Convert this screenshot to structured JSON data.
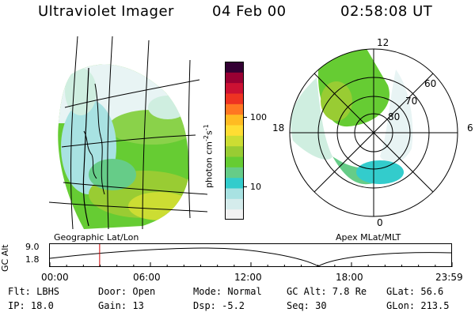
{
  "header": {
    "title": "Ultraviolet Imager",
    "date": "04 Feb 00",
    "time": "02:58:08 UT"
  },
  "left_panel": {
    "caption": "Geographic Lat/Lon"
  },
  "right_panel": {
    "caption": "Apex  MLat/MLT",
    "mlt_labels": {
      "top": "12",
      "bottom": "0",
      "left": "18",
      "right": "6"
    },
    "lat_labels": [
      "60",
      "70",
      "80"
    ]
  },
  "colorbar": {
    "unit_label": "photon cm",
    "unit_sup1": "-2",
    "unit_mid": "s",
    "unit_sup2": "-1",
    "tick_100": "100",
    "tick_10": "10",
    "colors": [
      "#f2f2f2",
      "#d5ecec",
      "#a8e2e2",
      "#33cccc",
      "#66cc88",
      "#66cc33",
      "#99cc33",
      "#ccdd33",
      "#ffdd33",
      "#ffbb22",
      "#ff7722",
      "#ee3322",
      "#cc1133",
      "#990033",
      "#330033"
    ]
  },
  "timeline": {
    "axis_label": "GC Alt",
    "y_top": "9.0",
    "y_bottom": "1.8",
    "ticks": [
      "00:00",
      "06:00",
      "12:00",
      "18:00",
      "23:59"
    ],
    "current_time_hours": 2.97
  },
  "info": {
    "row1": {
      "flt": "Flt: LBHS",
      "door": "Door: Open",
      "mode": "Mode: Normal",
      "gc_alt": "GC Alt: 7.8 Re",
      "glat": "GLat:  56.6"
    },
    "row2": {
      "ip": "IP: 18.0",
      "gain": "Gain: 13",
      "dsp": "Dsp:    -5.2",
      "seq": "Seq: 30",
      "glon": "GLon: 213.5"
    }
  }
}
